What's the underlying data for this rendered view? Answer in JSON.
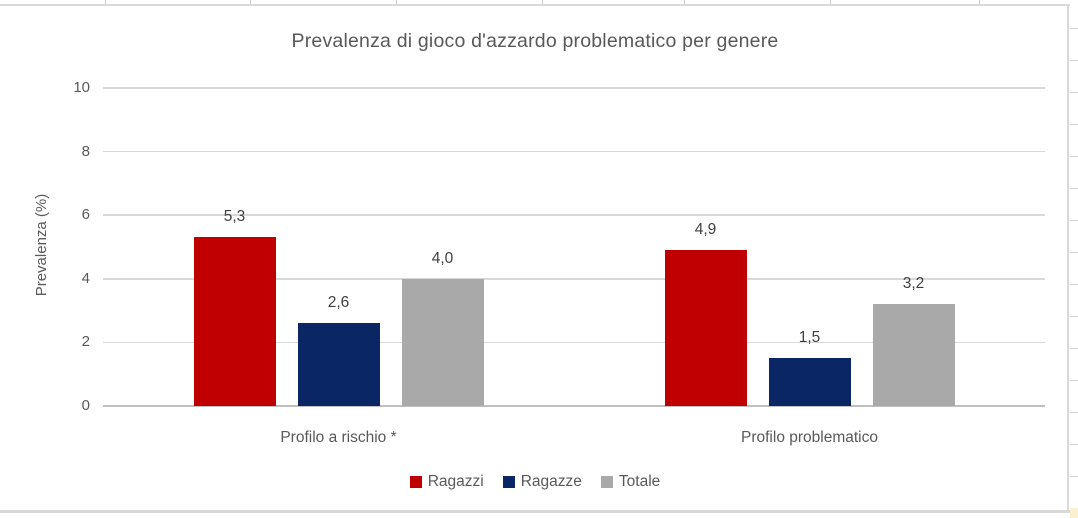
{
  "chart_data": {
    "type": "bar",
    "title": "Prevalenza di gioco d'azzardo problematico per genere",
    "xlabel": "",
    "ylabel": "Prevalenza (%)",
    "ylim": [
      0,
      10
    ],
    "yticks": [
      0,
      2,
      4,
      6,
      8,
      10
    ],
    "grid": true,
    "legend_position": "bottom",
    "categories": [
      "Profilo a rischio *",
      "Profilo problematico"
    ],
    "series": [
      {
        "name": "Ragazzi",
        "color": "#C00000",
        "values": [
          5.3,
          4.9
        ],
        "labels": [
          "5,3",
          "4,9"
        ]
      },
      {
        "name": "Ragazze",
        "color": "#0A2664",
        "values": [
          2.6,
          1.5
        ],
        "labels": [
          "2,6",
          "1,5"
        ]
      },
      {
        "name": "Totale",
        "color": "#A9A9A9",
        "values": [
          4.0,
          3.2
        ],
        "labels": [
          "4,0",
          "3,2"
        ]
      }
    ]
  },
  "colors": {
    "title_text": "#595959",
    "axis_text": "#595959",
    "data_label_text": "#404040",
    "gridline": "#D9D9D9",
    "axis_line": "#BFBFBF",
    "chart_border": "#D9D9D9",
    "spreadsheet_gridline": "#D4D4D4",
    "cell_highlight_fill": "#FBF0CF"
  }
}
